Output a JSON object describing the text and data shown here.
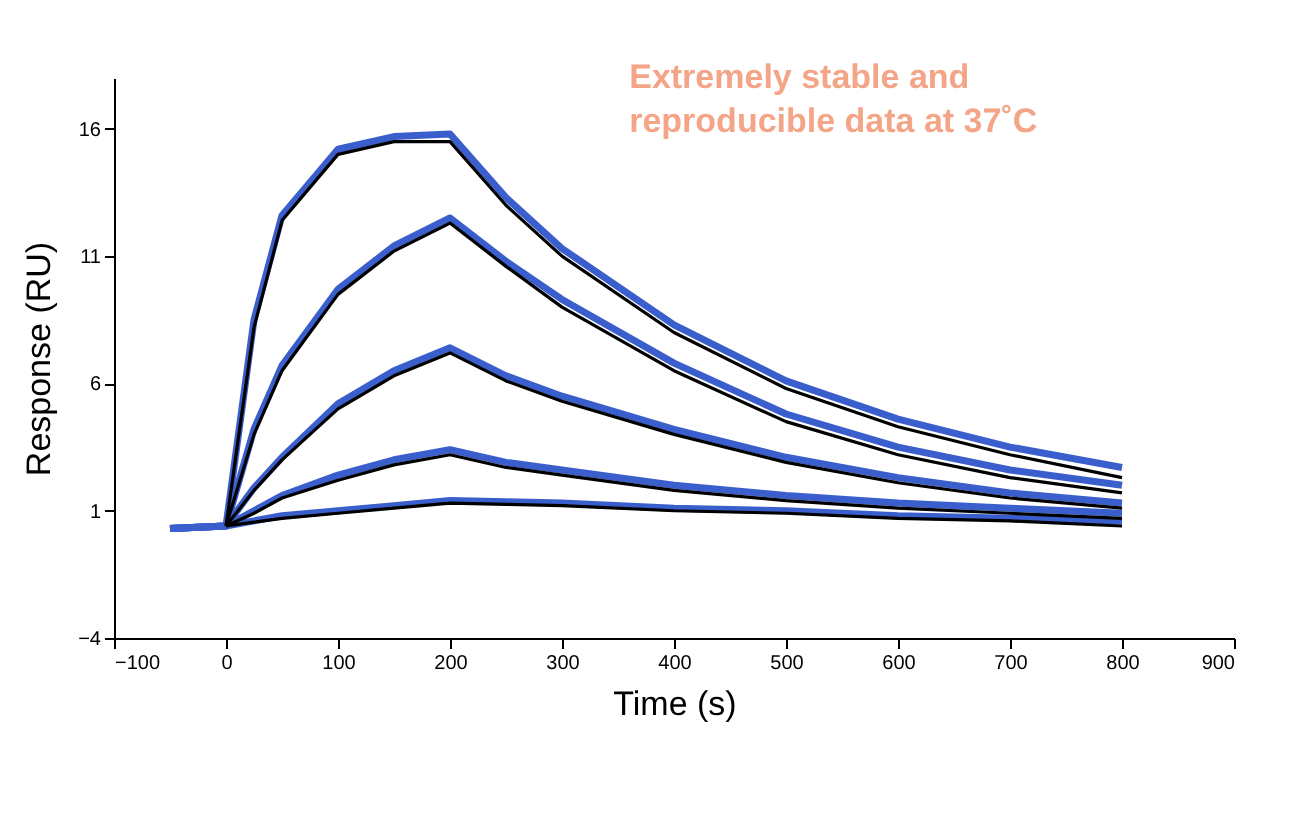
{
  "chart_data": {
    "type": "line",
    "xlabel": "Time (s)",
    "ylabel": "Response (RU)",
    "annotations": [
      "Extremely stable and",
      "reproducible data at 37˚C"
    ],
    "xlim": [
      -100,
      900
    ],
    "xticks": [
      -100,
      0,
      100,
      200,
      300,
      400,
      500,
      600,
      700,
      800,
      900
    ],
    "ylim": [
      -4,
      18
    ],
    "yticks": [
      -4,
      1,
      6,
      11,
      16
    ],
    "grid": false,
    "marker": "none",
    "line_style": "solid",
    "series": [
      {
        "color": "#3a5fcd",
        "x": [
          -50,
          0,
          25,
          50,
          100,
          150,
          200,
          250,
          300,
          400,
          500,
          600,
          700,
          800
        ],
        "values": [
          0.3,
          0.4,
          8.5,
          12.6,
          15.2,
          15.7,
          15.8,
          13.3,
          11.3,
          8.3,
          6.1,
          4.6,
          3.5,
          2.7
        ]
      },
      {
        "color": "#3a5fcd",
        "x": [
          -50,
          0,
          25,
          50,
          100,
          150,
          200,
          250,
          300,
          400,
          500,
          600,
          700,
          800
        ],
        "values": [
          0.3,
          0.4,
          4.2,
          6.7,
          9.7,
          11.4,
          12.5,
          10.8,
          9.3,
          6.8,
          4.8,
          3.5,
          2.6,
          2.0
        ]
      },
      {
        "color": "#3a5fcd",
        "x": [
          -50,
          0,
          25,
          50,
          100,
          150,
          200,
          250,
          300,
          400,
          500,
          600,
          700,
          800
        ],
        "values": [
          0.3,
          0.4,
          1.9,
          3.1,
          5.2,
          6.5,
          7.4,
          6.3,
          5.5,
          4.2,
          3.1,
          2.3,
          1.7,
          1.3
        ]
      },
      {
        "color": "#3a5fcd",
        "x": [
          -50,
          0,
          25,
          50,
          100,
          150,
          200,
          250,
          300,
          400,
          500,
          600,
          700,
          800
        ],
        "values": [
          0.3,
          0.4,
          1.0,
          1.6,
          2.4,
          3.0,
          3.4,
          2.9,
          2.6,
          2.0,
          1.6,
          1.3,
          1.1,
          0.9
        ]
      },
      {
        "color": "#3a5fcd",
        "x": [
          -50,
          0,
          25,
          50,
          100,
          150,
          200,
          250,
          300,
          400,
          500,
          600,
          700,
          800
        ],
        "values": [
          0.3,
          0.4,
          0.6,
          0.8,
          1.0,
          1.2,
          1.4,
          1.35,
          1.3,
          1.1,
          1.0,
          0.8,
          0.7,
          0.6
        ]
      },
      {
        "color": "#000000",
        "x": [
          0,
          25,
          50,
          100,
          150,
          200,
          250,
          300,
          400,
          500,
          600,
          700,
          800
        ],
        "values": [
          0.4,
          8.2,
          12.4,
          15.0,
          15.5,
          15.5,
          13.0,
          11.0,
          8.0,
          5.8,
          4.3,
          3.2,
          2.3
        ]
      },
      {
        "color": "#000000",
        "x": [
          0,
          25,
          50,
          100,
          150,
          200,
          250,
          300,
          400,
          500,
          600,
          700,
          800
        ],
        "values": [
          0.4,
          4.0,
          6.5,
          9.5,
          11.2,
          12.3,
          10.6,
          9.0,
          6.5,
          4.5,
          3.2,
          2.3,
          1.7
        ]
      },
      {
        "color": "#000000",
        "x": [
          0,
          25,
          50,
          100,
          150,
          200,
          250,
          300,
          400,
          500,
          600,
          700,
          800
        ],
        "values": [
          0.4,
          1.8,
          3.0,
          5.0,
          6.3,
          7.2,
          6.1,
          5.3,
          4.0,
          2.9,
          2.1,
          1.5,
          1.1
        ]
      },
      {
        "color": "#000000",
        "x": [
          0,
          25,
          50,
          100,
          150,
          200,
          250,
          300,
          400,
          500,
          600,
          700,
          800
        ],
        "values": [
          0.4,
          0.9,
          1.5,
          2.2,
          2.8,
          3.2,
          2.7,
          2.4,
          1.8,
          1.4,
          1.1,
          0.9,
          0.7
        ]
      },
      {
        "color": "#000000",
        "x": [
          0,
          25,
          50,
          100,
          150,
          200,
          250,
          300,
          400,
          500,
          600,
          700,
          800
        ],
        "values": [
          0.4,
          0.55,
          0.7,
          0.9,
          1.1,
          1.3,
          1.25,
          1.2,
          1.0,
          0.9,
          0.7,
          0.6,
          0.4
        ]
      }
    ]
  }
}
